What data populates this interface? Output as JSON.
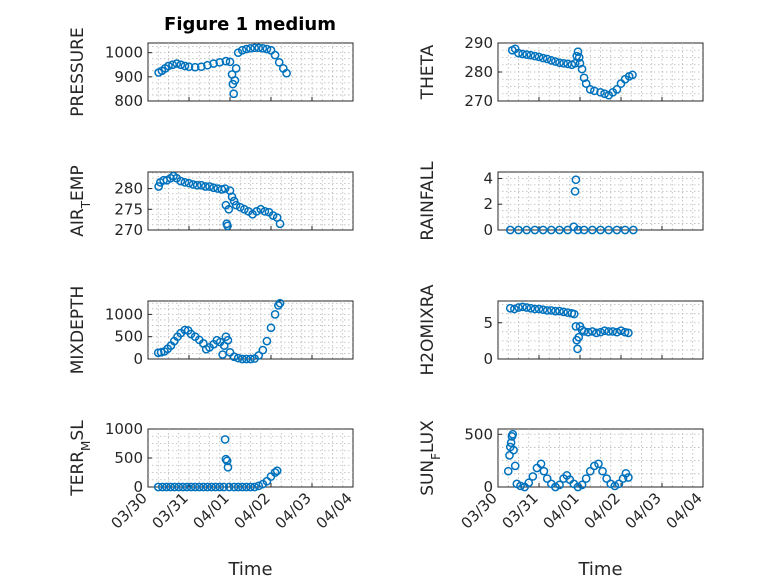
{
  "figure": {
    "title": "Figure 1 medium"
  },
  "chart_data": [
    {
      "type": "scatter",
      "ylabel": "PRESSURE",
      "xlabel": "",
      "ylim": [
        800,
        1040
      ],
      "yticks": [
        800,
        900,
        1000
      ],
      "grid": true,
      "points": [
        [
          0.26,
          918
        ],
        [
          0.34,
          925
        ],
        [
          0.42,
          935
        ],
        [
          0.5,
          945
        ],
        [
          0.6,
          950
        ],
        [
          0.7,
          955
        ],
        [
          0.8,
          950
        ],
        [
          0.9,
          945
        ],
        [
          1.0,
          942
        ],
        [
          1.15,
          940
        ],
        [
          1.3,
          942
        ],
        [
          1.45,
          948
        ],
        [
          1.6,
          955
        ],
        [
          1.75,
          960
        ],
        [
          1.9,
          965
        ],
        [
          2.0,
          962
        ],
        [
          2.05,
          910
        ],
        [
          2.07,
          870
        ],
        [
          2.09,
          830
        ],
        [
          2.12,
          885
        ],
        [
          2.15,
          935
        ],
        [
          2.2,
          1000
        ],
        [
          2.3,
          1010
        ],
        [
          2.4,
          1015
        ],
        [
          2.5,
          1018
        ],
        [
          2.6,
          1020
        ],
        [
          2.7,
          1020
        ],
        [
          2.8,
          1018
        ],
        [
          2.9,
          1015
        ],
        [
          3.0,
          1010
        ],
        [
          3.1,
          990
        ],
        [
          3.2,
          960
        ],
        [
          3.3,
          935
        ],
        [
          3.38,
          915
        ]
      ]
    },
    {
      "type": "scatter",
      "ylabel": "THETA",
      "xlabel": "",
      "ylim": [
        270,
        290
      ],
      "yticks": [
        270,
        280,
        290
      ],
      "grid": true,
      "points": [
        [
          0.35,
          287.5
        ],
        [
          0.42,
          288
        ],
        [
          0.5,
          286.5
        ],
        [
          0.6,
          286.2
        ],
        [
          0.7,
          286
        ],
        [
          0.8,
          285.8
        ],
        [
          0.9,
          285.5
        ],
        [
          1.0,
          285.2
        ],
        [
          1.1,
          284.8
        ],
        [
          1.2,
          284.5
        ],
        [
          1.3,
          284
        ],
        [
          1.4,
          283.6
        ],
        [
          1.5,
          283.2
        ],
        [
          1.6,
          283
        ],
        [
          1.7,
          282.8
        ],
        [
          1.8,
          282.5
        ],
        [
          1.88,
          283
        ],
        [
          1.92,
          285.5
        ],
        [
          1.95,
          287
        ],
        [
          1.98,
          285
        ],
        [
          2.0,
          283
        ],
        [
          2.05,
          281
        ],
        [
          2.1,
          278
        ],
        [
          2.15,
          276
        ],
        [
          2.25,
          274
        ],
        [
          2.35,
          273.5
        ],
        [
          2.5,
          273
        ],
        [
          2.6,
          272.5
        ],
        [
          2.7,
          272
        ],
        [
          2.8,
          273
        ],
        [
          2.9,
          274
        ],
        [
          3.0,
          276
        ],
        [
          3.1,
          277.5
        ],
        [
          3.2,
          278.5
        ],
        [
          3.28,
          279
        ]
      ]
    },
    {
      "type": "scatter",
      "ylabel": "AIR_TEMP",
      "xlabel": "",
      "ylim": [
        270,
        284
      ],
      "yticks": [
        270,
        275,
        280
      ],
      "grid": true,
      "points": [
        [
          0.26,
          280.5
        ],
        [
          0.3,
          281.5
        ],
        [
          0.38,
          282
        ],
        [
          0.46,
          282
        ],
        [
          0.55,
          282.5
        ],
        [
          0.62,
          283
        ],
        [
          0.7,
          282.5
        ],
        [
          0.8,
          281.8
        ],
        [
          0.9,
          281.5
        ],
        [
          1.0,
          281.3
        ],
        [
          1.1,
          281
        ],
        [
          1.2,
          280.8
        ],
        [
          1.3,
          280.8
        ],
        [
          1.4,
          280.5
        ],
        [
          1.5,
          280.5
        ],
        [
          1.6,
          280.2
        ],
        [
          1.7,
          280
        ],
        [
          1.8,
          279.8
        ],
        [
          1.88,
          280
        ],
        [
          1.9,
          276
        ],
        [
          1.92,
          271.5
        ],
        [
          1.94,
          271
        ],
        [
          1.97,
          275
        ],
        [
          2.0,
          279.5
        ],
        [
          2.05,
          278
        ],
        [
          2.1,
          277
        ],
        [
          2.15,
          276
        ],
        [
          2.25,
          275.5
        ],
        [
          2.35,
          275
        ],
        [
          2.45,
          274.5
        ],
        [
          2.55,
          273.8
        ],
        [
          2.65,
          274.5
        ],
        [
          2.75,
          275
        ],
        [
          2.85,
          274.5
        ],
        [
          2.95,
          274.3
        ],
        [
          3.05,
          273.5
        ],
        [
          3.15,
          273
        ],
        [
          3.22,
          271.5
        ]
      ]
    },
    {
      "type": "scatter",
      "ylabel": "RAINFALL",
      "xlabel": "",
      "ylim": [
        0,
        4.5
      ],
      "yticks": [
        0,
        2,
        4
      ],
      "grid": true,
      "points": [
        [
          0.3,
          0
        ],
        [
          0.5,
          0
        ],
        [
          0.7,
          0
        ],
        [
          0.9,
          0
        ],
        [
          1.1,
          0
        ],
        [
          1.3,
          0
        ],
        [
          1.5,
          0
        ],
        [
          1.7,
          0
        ],
        [
          1.85,
          0.25
        ],
        [
          1.88,
          3.0
        ],
        [
          1.9,
          3.9
        ],
        [
          1.95,
          0
        ],
        [
          2.1,
          0
        ],
        [
          2.3,
          0
        ],
        [
          2.5,
          0
        ],
        [
          2.7,
          0
        ],
        [
          2.9,
          0
        ],
        [
          3.1,
          0
        ],
        [
          3.3,
          0
        ]
      ]
    },
    {
      "type": "scatter",
      "ylabel": "MIXDEPTH",
      "xlabel": "",
      "ylim": [
        0,
        1300
      ],
      "yticks": [
        0,
        500,
        1000
      ],
      "grid": true,
      "points": [
        [
          0.25,
          140
        ],
        [
          0.32,
          150
        ],
        [
          0.4,
          170
        ],
        [
          0.48,
          230
        ],
        [
          0.56,
          300
        ],
        [
          0.64,
          400
        ],
        [
          0.72,
          500
        ],
        [
          0.8,
          580
        ],
        [
          0.9,
          650
        ],
        [
          0.98,
          640
        ],
        [
          1.05,
          560
        ],
        [
          1.15,
          500
        ],
        [
          1.25,
          430
        ],
        [
          1.35,
          350
        ],
        [
          1.42,
          220
        ],
        [
          1.5,
          260
        ],
        [
          1.6,
          330
        ],
        [
          1.68,
          420
        ],
        [
          1.76,
          380
        ],
        [
          1.82,
          100
        ],
        [
          1.86,
          300
        ],
        [
          1.9,
          500
        ],
        [
          1.95,
          420
        ],
        [
          2.0,
          150
        ],
        [
          2.1,
          50
        ],
        [
          2.2,
          20
        ],
        [
          2.3,
          0
        ],
        [
          2.4,
          0
        ],
        [
          2.5,
          0
        ],
        [
          2.6,
          10
        ],
        [
          2.7,
          80
        ],
        [
          2.8,
          200
        ],
        [
          2.9,
          400
        ],
        [
          3.0,
          700
        ],
        [
          3.1,
          1000
        ],
        [
          3.18,
          1200
        ],
        [
          3.22,
          1250
        ]
      ]
    },
    {
      "type": "scatter",
      "ylabel": "H2OMIXRA",
      "xlabel": "",
      "ylim": [
        0,
        8
      ],
      "yticks": [
        0,
        5
      ],
      "grid": true,
      "points": [
        [
          0.3,
          7.0
        ],
        [
          0.4,
          6.9
        ],
        [
          0.5,
          7.1
        ],
        [
          0.6,
          7.2
        ],
        [
          0.7,
          7.1
        ],
        [
          0.8,
          7.0
        ],
        [
          0.9,
          6.9
        ],
        [
          1.0,
          6.9
        ],
        [
          1.1,
          6.8
        ],
        [
          1.2,
          6.7
        ],
        [
          1.3,
          6.7
        ],
        [
          1.4,
          6.6
        ],
        [
          1.5,
          6.6
        ],
        [
          1.6,
          6.5
        ],
        [
          1.7,
          6.4
        ],
        [
          1.8,
          6.3
        ],
        [
          1.86,
          6.2
        ],
        [
          1.9,
          4.5
        ],
        [
          1.92,
          2.6
        ],
        [
          1.94,
          1.4
        ],
        [
          1.97,
          3.0
        ],
        [
          2.0,
          4.5
        ],
        [
          2.05,
          4.0
        ],
        [
          2.1,
          3.8
        ],
        [
          2.2,
          3.7
        ],
        [
          2.3,
          3.8
        ],
        [
          2.4,
          3.6
        ],
        [
          2.5,
          3.7
        ],
        [
          2.6,
          3.9
        ],
        [
          2.7,
          3.8
        ],
        [
          2.8,
          3.8
        ],
        [
          2.9,
          3.7
        ],
        [
          3.0,
          3.9
        ],
        [
          3.1,
          3.7
        ],
        [
          3.18,
          3.6
        ]
      ]
    },
    {
      "type": "scatter",
      "ylabel": "TERR_MSL",
      "xlabel": "Time",
      "ylim": [
        0,
        1000
      ],
      "yticks": [
        0,
        500,
        1000
      ],
      "grid": true,
      "xticks": [
        "03/30",
        "03/31",
        "04/01",
        "04/02",
        "04/03",
        "04/04"
      ],
      "points": [
        [
          0.25,
          0
        ],
        [
          0.35,
          0
        ],
        [
          0.45,
          0
        ],
        [
          0.55,
          0
        ],
        [
          0.65,
          0
        ],
        [
          0.75,
          0
        ],
        [
          0.85,
          0
        ],
        [
          0.95,
          0
        ],
        [
          1.05,
          0
        ],
        [
          1.15,
          0
        ],
        [
          1.25,
          0
        ],
        [
          1.35,
          0
        ],
        [
          1.45,
          0
        ],
        [
          1.55,
          0
        ],
        [
          1.65,
          0
        ],
        [
          1.75,
          0
        ],
        [
          1.85,
          0
        ],
        [
          1.88,
          820
        ],
        [
          1.9,
          480
        ],
        [
          1.93,
          450
        ],
        [
          1.95,
          340
        ],
        [
          1.98,
          0
        ],
        [
          2.1,
          0
        ],
        [
          2.2,
          0
        ],
        [
          2.3,
          0
        ],
        [
          2.4,
          0
        ],
        [
          2.5,
          0
        ],
        [
          2.6,
          0
        ],
        [
          2.7,
          20
        ],
        [
          2.8,
          50
        ],
        [
          2.9,
          100
        ],
        [
          3.0,
          180
        ],
        [
          3.1,
          250
        ],
        [
          3.15,
          280
        ]
      ]
    },
    {
      "type": "scatter",
      "ylabel": "SUN_FLUX",
      "xlabel": "Time",
      "ylim": [
        0,
        550
      ],
      "yticks": [
        0,
        500
      ],
      "grid": true,
      "xticks": [
        "03/30",
        "03/31",
        "04/01",
        "04/02",
        "04/03",
        "04/04"
      ],
      "points": [
        [
          0.25,
          150
        ],
        [
          0.28,
          300
        ],
        [
          0.3,
          380
        ],
        [
          0.32,
          420
        ],
        [
          0.34,
          480
        ],
        [
          0.36,
          500
        ],
        [
          0.38,
          350
        ],
        [
          0.42,
          200
        ],
        [
          0.46,
          30
        ],
        [
          0.55,
          10
        ],
        [
          0.65,
          0
        ],
        [
          0.75,
          40
        ],
        [
          0.85,
          100
        ],
        [
          0.95,
          180
        ],
        [
          1.05,
          220
        ],
        [
          1.12,
          150
        ],
        [
          1.2,
          80
        ],
        [
          1.3,
          30
        ],
        [
          1.4,
          0
        ],
        [
          1.5,
          20
        ],
        [
          1.6,
          80
        ],
        [
          1.68,
          110
        ],
        [
          1.75,
          70
        ],
        [
          1.85,
          30
        ],
        [
          1.95,
          0
        ],
        [
          2.05,
          20
        ],
        [
          2.15,
          80
        ],
        [
          2.25,
          150
        ],
        [
          2.35,
          200
        ],
        [
          2.45,
          220
        ],
        [
          2.55,
          150
        ],
        [
          2.65,
          80
        ],
        [
          2.75,
          30
        ],
        [
          2.85,
          10
        ],
        [
          2.95,
          30
        ],
        [
          3.05,
          80
        ],
        [
          3.12,
          130
        ],
        [
          3.18,
          90
        ]
      ]
    }
  ]
}
